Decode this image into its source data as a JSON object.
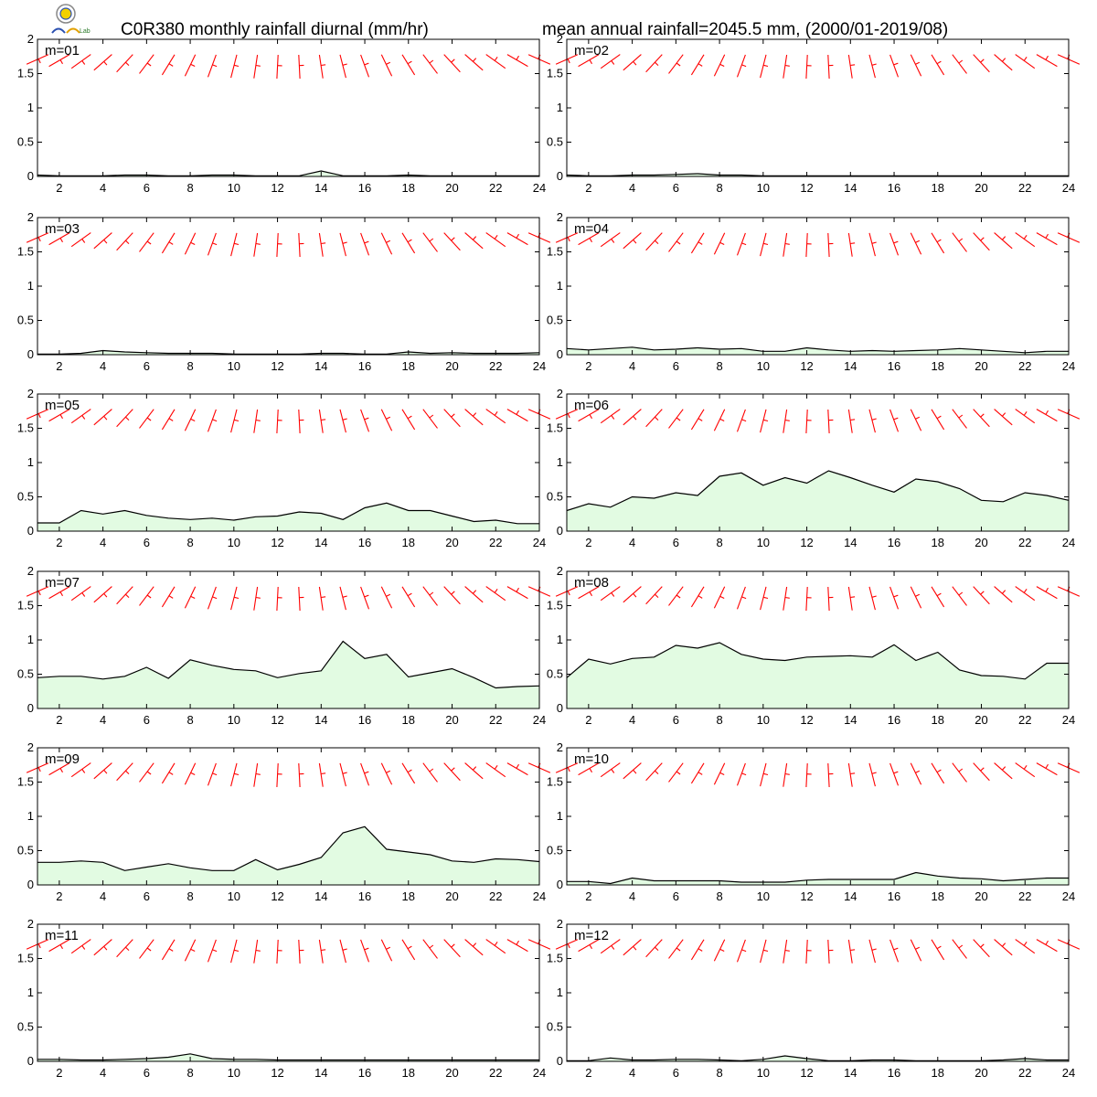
{
  "title_left": "C0R380 monthly rainfall diurnal (mm/hr)",
  "title_right": "mean annual rainfall=2045.5 mm, (2000/01-2019/08)",
  "logo": {
    "name": "lab-logo",
    "text": "Lab"
  },
  "colors": {
    "fill": "#e2fbe2",
    "line": "#000000",
    "wind": "#ff0000"
  },
  "chart_data": {
    "type": "area",
    "x": [
      1,
      2,
      3,
      4,
      5,
      6,
      7,
      8,
      9,
      10,
      11,
      12,
      13,
      14,
      15,
      16,
      17,
      18,
      19,
      20,
      21,
      22,
      23,
      24
    ],
    "xticks": [
      "2",
      "4",
      "6",
      "8",
      "10",
      "12",
      "14",
      "16",
      "18",
      "20",
      "22",
      "24"
    ],
    "yticks": [
      "0",
      "0.5",
      "1",
      "1.5",
      "2"
    ],
    "xlim": [
      1,
      24
    ],
    "ylim": [
      0,
      2
    ],
    "panels": [
      {
        "label": "m=01",
        "values": [
          0.02,
          0.01,
          0.01,
          0.01,
          0.02,
          0.02,
          0.01,
          0.01,
          0.02,
          0.02,
          0.01,
          0.01,
          0.01,
          0.08,
          0.01,
          0.01,
          0.01,
          0.02,
          0.01,
          0.01,
          0.01,
          0.01,
          0.01,
          0.01
        ]
      },
      {
        "label": "m=02",
        "values": [
          0.02,
          0.01,
          0.01,
          0.02,
          0.02,
          0.03,
          0.04,
          0.02,
          0.02,
          0.01,
          0.01,
          0.01,
          0.01,
          0.01,
          0.01,
          0.01,
          0.01,
          0.01,
          0.01,
          0.01,
          0.01,
          0.01,
          0.01,
          0.01
        ]
      },
      {
        "label": "m=03",
        "values": [
          0.01,
          0.01,
          0.02,
          0.06,
          0.04,
          0.03,
          0.02,
          0.02,
          0.02,
          0.01,
          0.01,
          0.01,
          0.01,
          0.02,
          0.02,
          0.01,
          0.01,
          0.04,
          0.02,
          0.03,
          0.02,
          0.02,
          0.02,
          0.03
        ]
      },
      {
        "label": "m=04",
        "values": [
          0.09,
          0.07,
          0.09,
          0.11,
          0.07,
          0.08,
          0.1,
          0.08,
          0.09,
          0.05,
          0.05,
          0.1,
          0.07,
          0.05,
          0.06,
          0.05,
          0.06,
          0.07,
          0.09,
          0.07,
          0.05,
          0.03,
          0.05,
          0.05
        ]
      },
      {
        "label": "m=05",
        "values": [
          0.12,
          0.12,
          0.3,
          0.25,
          0.3,
          0.23,
          0.19,
          0.17,
          0.19,
          0.16,
          0.21,
          0.22,
          0.28,
          0.26,
          0.17,
          0.34,
          0.41,
          0.3,
          0.3,
          0.22,
          0.14,
          0.16,
          0.11,
          0.11
        ]
      },
      {
        "label": "m=06",
        "values": [
          0.3,
          0.4,
          0.35,
          0.5,
          0.48,
          0.56,
          0.52,
          0.8,
          0.85,
          0.67,
          0.78,
          0.7,
          0.88,
          0.78,
          0.67,
          0.57,
          0.76,
          0.72,
          0.62,
          0.45,
          0.43,
          0.56,
          0.52,
          0.45
        ]
      },
      {
        "label": "m=07",
        "values": [
          0.45,
          0.47,
          0.47,
          0.43,
          0.47,
          0.6,
          0.44,
          0.71,
          0.63,
          0.57,
          0.55,
          0.45,
          0.51,
          0.55,
          0.98,
          0.73,
          0.79,
          0.46,
          0.52,
          0.58,
          0.45,
          0.3,
          0.32,
          0.33
        ]
      },
      {
        "label": "m=08",
        "values": [
          0.45,
          0.72,
          0.65,
          0.73,
          0.75,
          0.92,
          0.88,
          0.96,
          0.79,
          0.72,
          0.7,
          0.75,
          0.76,
          0.77,
          0.75,
          0.93,
          0.7,
          0.82,
          0.56,
          0.48,
          0.47,
          0.43,
          0.66,
          0.66
        ]
      },
      {
        "label": "m=09",
        "values": [
          0.33,
          0.33,
          0.35,
          0.33,
          0.21,
          0.26,
          0.31,
          0.25,
          0.21,
          0.21,
          0.37,
          0.22,
          0.3,
          0.4,
          0.76,
          0.85,
          0.52,
          0.48,
          0.44,
          0.35,
          0.33,
          0.38,
          0.37,
          0.34
        ]
      },
      {
        "label": "m=10",
        "values": [
          0.05,
          0.05,
          0.02,
          0.1,
          0.06,
          0.06,
          0.06,
          0.06,
          0.04,
          0.04,
          0.04,
          0.07,
          0.08,
          0.08,
          0.08,
          0.08,
          0.18,
          0.13,
          0.1,
          0.09,
          0.06,
          0.08,
          0.1,
          0.1
        ]
      },
      {
        "label": "m=11",
        "values": [
          0.03,
          0.03,
          0.02,
          0.02,
          0.03,
          0.04,
          0.06,
          0.11,
          0.04,
          0.03,
          0.03,
          0.02,
          0.02,
          0.02,
          0.02,
          0.02,
          0.02,
          0.02,
          0.02,
          0.02,
          0.02,
          0.02,
          0.02,
          0.02
        ]
      },
      {
        "label": "m=12",
        "values": [
          0.01,
          0.01,
          0.05,
          0.02,
          0.02,
          0.03,
          0.03,
          0.02,
          0.01,
          0.03,
          0.08,
          0.04,
          0.01,
          0.01,
          0.02,
          0.02,
          0.01,
          0.01,
          0.01,
          0.01,
          0.02,
          0.04,
          0.02,
          0.02
        ]
      }
    ]
  }
}
